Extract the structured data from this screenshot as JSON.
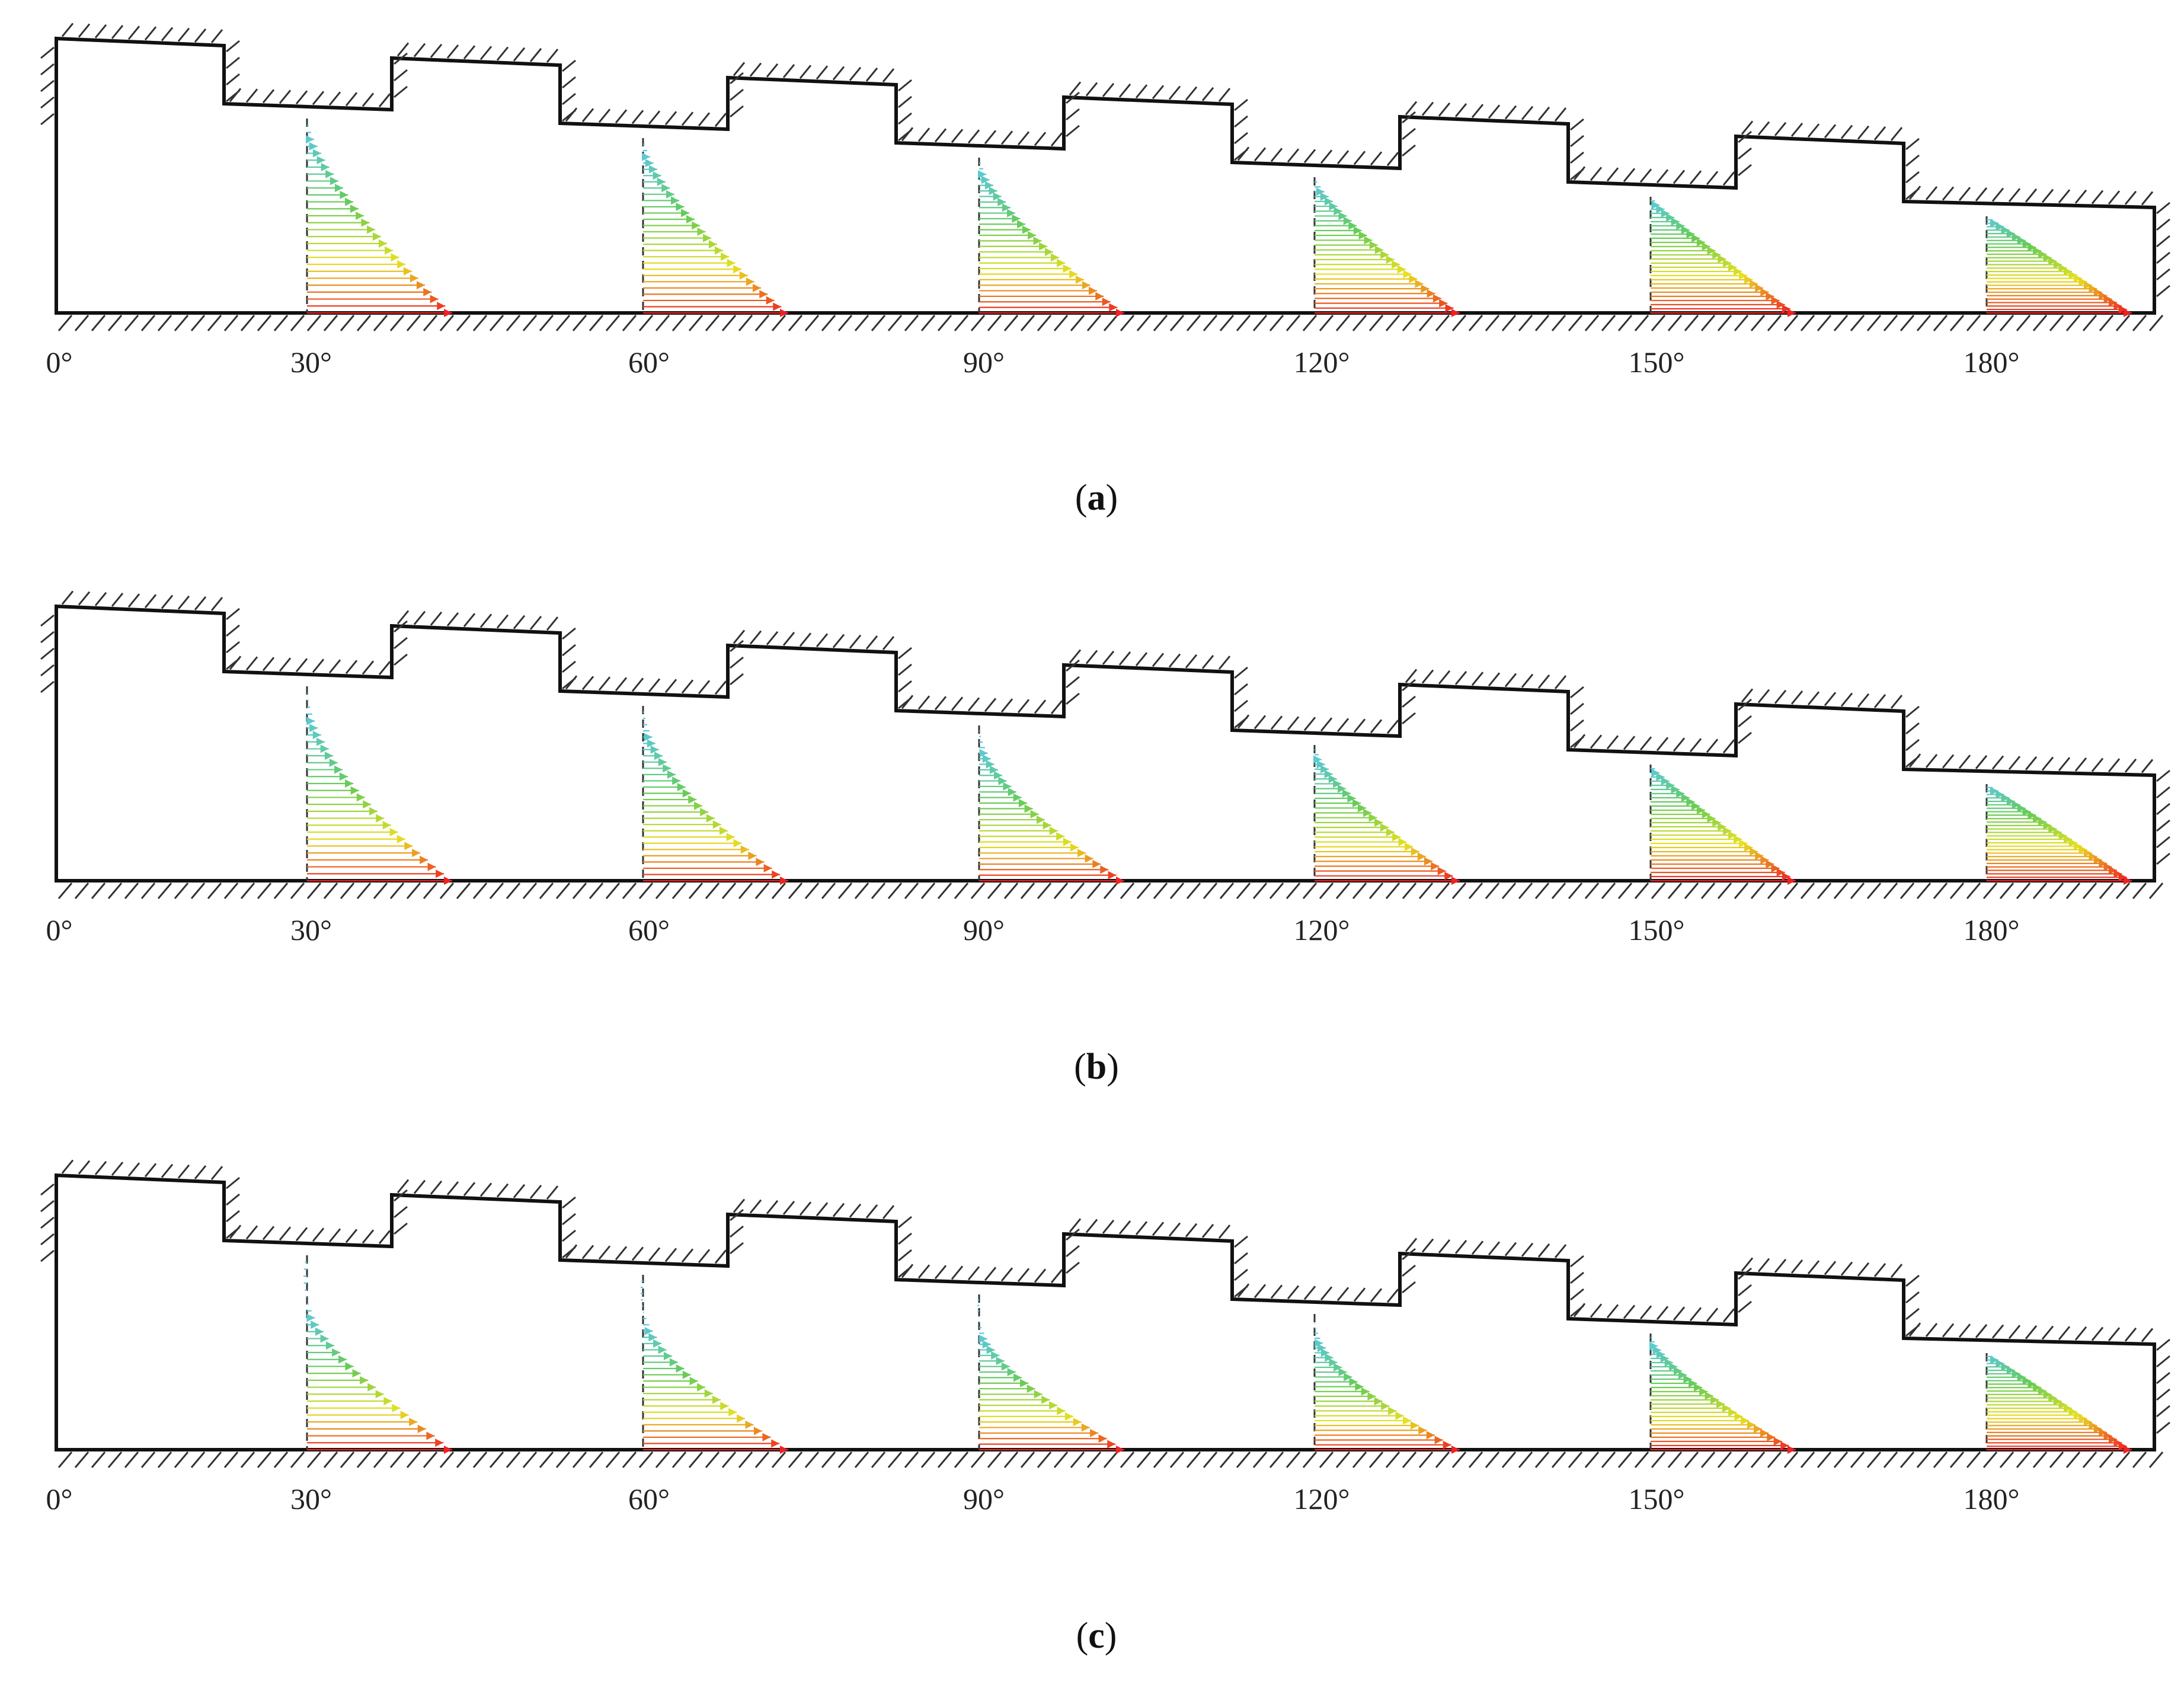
{
  "angle_labels": [
    "0°",
    "30°",
    "60°",
    "90°",
    "120°",
    "150°",
    "180°"
  ],
  "panels": [
    {
      "id": "a",
      "caption": "a",
      "profiles": [
        {
          "angle": "30°",
          "backflow": 0.0,
          "bulge": 0.45
        },
        {
          "angle": "60°",
          "backflow": 0.0,
          "bulge": 0.45
        },
        {
          "angle": "90°",
          "backflow": 0.0,
          "bulge": 0.45
        },
        {
          "angle": "120°",
          "backflow": 0.0,
          "bulge": 0.6
        },
        {
          "angle": "150°",
          "backflow": 0.0,
          "bulge": 0.75
        },
        {
          "angle": "180°",
          "backflow": 0.0,
          "bulge": 0.85
        }
      ]
    },
    {
      "id": "b",
      "caption": "b",
      "profiles": [
        {
          "angle": "30°",
          "backflow": 0.05,
          "bulge": 0.2
        },
        {
          "angle": "60°",
          "backflow": 0.0,
          "bulge": 0.2
        },
        {
          "angle": "90°",
          "backflow": 0.05,
          "bulge": 0.25
        },
        {
          "angle": "120°",
          "backflow": 0.0,
          "bulge": 0.45
        },
        {
          "angle": "150°",
          "backflow": 0.0,
          "bulge": 0.75
        },
        {
          "angle": "180°",
          "backflow": 0.0,
          "bulge": 0.85
        }
      ]
    },
    {
      "id": "c",
      "caption": "c",
      "profiles": [
        {
          "angle": "30°",
          "backflow": 0.35,
          "bulge": 0.1
        },
        {
          "angle": "60°",
          "backflow": 0.3,
          "bulge": 0.1
        },
        {
          "angle": "90°",
          "backflow": 0.25,
          "bulge": 0.1
        },
        {
          "angle": "120°",
          "backflow": 0.1,
          "bulge": 0.15
        },
        {
          "angle": "150°",
          "backflow": 0.0,
          "bulge": 0.45
        },
        {
          "angle": "180°",
          "backflow": 0.0,
          "bulge": 0.85
        }
      ]
    }
  ],
  "colors": {
    "wall": "#111111",
    "hatch": "#333333",
    "centerline": "#333333",
    "velocity_scale": [
      "#5bc8e6",
      "#66cc55",
      "#e8e020",
      "#ee2222"
    ]
  }
}
